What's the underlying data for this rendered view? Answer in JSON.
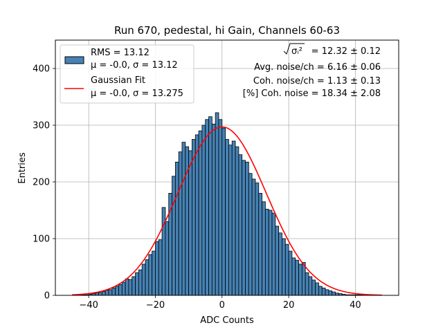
{
  "chart_data": {
    "type": "bar",
    "title": "Run 670, pedestal, hi Gain, Channels 60-63",
    "xlabel": "ADC Counts",
    "ylabel": "Entries",
    "xlim": [
      -50,
      53
    ],
    "ylim": [
      0,
      450
    ],
    "grid": true,
    "legend_position": "top-left",
    "xticks": [
      -40,
      -20,
      0,
      20,
      40
    ],
    "yticks": [
      0,
      100,
      200,
      300,
      400
    ],
    "bin_start": -44,
    "bin_width": 1,
    "values": [
      1,
      1,
      1,
      1,
      2,
      3,
      4,
      5,
      7,
      9,
      10,
      13,
      16,
      19,
      23,
      29,
      28,
      33,
      40,
      45,
      55,
      63,
      72,
      78,
      95,
      98,
      155,
      130,
      180,
      210,
      235,
      253,
      270,
      262,
      255,
      275,
      283,
      290,
      300,
      310,
      315,
      302,
      322,
      310,
      295,
      275,
      265,
      272,
      262,
      248,
      238,
      235,
      215,
      205,
      198,
      180,
      165,
      152,
      150,
      145,
      122,
      110,
      100,
      90,
      78,
      66,
      62,
      55,
      58,
      40,
      33,
      27,
      22,
      16,
      13,
      10,
      8,
      6,
      4,
      3,
      2,
      1,
      1,
      1,
      1,
      1,
      1,
      0,
      0,
      0,
      0,
      0,
      0
    ],
    "series": [
      {
        "name": "RMS = 13.12",
        "name_line2": "μ = -0.0, σ = 13.12",
        "kind": "histogram",
        "color": "#4682b4",
        "edgecolor": "#000000"
      },
      {
        "name": "Gaussian Fit",
        "name_line2": "μ = -0.0, σ = 13.275",
        "kind": "line",
        "color": "#ff0000"
      }
    ],
    "fit": {
      "mu": 0.0,
      "sigma": 13.275,
      "amplitude": 297,
      "x_range": [
        -45,
        48
      ]
    },
    "annotations": [
      {
        "id": "sigma2",
        "label": "σᵢ²",
        "text": " = 12.32 ± 0.12"
      },
      {
        "id": "avg",
        "text": "Avg. noise/ch = 6.16 ± 0.06"
      },
      {
        "id": "coh",
        "text": "Coh. noise/ch = 1.13 ± 0.13"
      },
      {
        "id": "pct",
        "text": "[%] Coh. noise = 18.34 ± 2.08"
      }
    ]
  }
}
